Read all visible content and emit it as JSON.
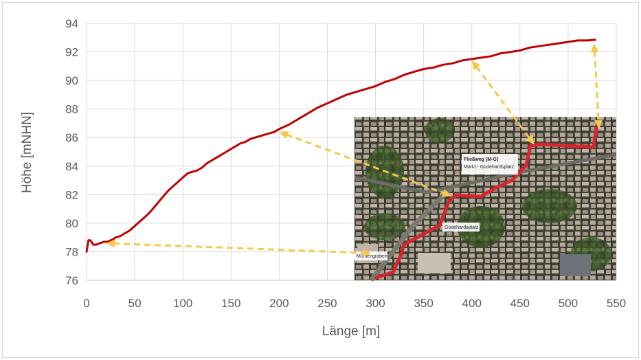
{
  "chart_data": {
    "type": "line",
    "title": "",
    "xlabel": "Länge [m]",
    "ylabel": "Höhe [mNHN]",
    "xlim": [
      0,
      550
    ],
    "ylim": [
      76,
      94
    ],
    "xticks": [
      0,
      50,
      100,
      150,
      200,
      250,
      300,
      350,
      400,
      450,
      500,
      550
    ],
    "yticks": [
      76,
      78,
      80,
      82,
      84,
      86,
      88,
      90,
      92,
      94
    ],
    "grid": true,
    "legend": "none",
    "series": [
      {
        "color": "#c00000",
        "x": [
          0,
          2,
          4,
          7,
          10,
          14,
          18,
          22,
          25,
          28,
          30,
          35,
          40,
          45,
          50,
          55,
          60,
          65,
          70,
          75,
          80,
          85,
          90,
          95,
          100,
          105,
          110,
          115,
          120,
          125,
          130,
          135,
          140,
          145,
          150,
          155,
          160,
          165,
          170,
          175,
          180,
          185,
          190,
          195,
          200,
          210,
          220,
          230,
          240,
          250,
          260,
          270,
          280,
          290,
          300,
          310,
          320,
          330,
          340,
          350,
          360,
          370,
          380,
          390,
          400,
          410,
          420,
          430,
          440,
          450,
          460,
          470,
          480,
          490,
          500,
          510,
          520,
          528
        ],
        "y": [
          78.0,
          78.8,
          78.8,
          78.5,
          78.5,
          78.6,
          78.7,
          78.7,
          78.8,
          78.9,
          79.0,
          79.1,
          79.3,
          79.5,
          79.8,
          80.1,
          80.4,
          80.7,
          81.1,
          81.5,
          81.9,
          82.3,
          82.6,
          82.9,
          83.2,
          83.5,
          83.6,
          83.7,
          83.9,
          84.2,
          84.4,
          84.6,
          84.8,
          85.0,
          85.2,
          85.4,
          85.6,
          85.7,
          85.9,
          86.0,
          86.1,
          86.2,
          86.3,
          86.4,
          86.6,
          86.9,
          87.3,
          87.7,
          88.1,
          88.4,
          88.7,
          89.0,
          89.2,
          89.4,
          89.6,
          89.9,
          90.1,
          90.4,
          90.6,
          90.8,
          90.9,
          91.1,
          91.2,
          91.4,
          91.5,
          91.6,
          91.7,
          91.9,
          92.0,
          92.1,
          92.3,
          92.4,
          92.5,
          92.6,
          92.7,
          92.8,
          92.8,
          92.85
        ]
      }
    ],
    "annotations": [
      {
        "type": "arrow",
        "from": [
          20,
          78.6
        ],
        "to": [
          296,
          77.9
        ]
      },
      {
        "type": "arrow",
        "from": [
          200,
          86.4
        ],
        "to": [
          379,
          81.9
        ]
      },
      {
        "type": "arrow",
        "from": [
          400,
          91.4
        ],
        "to": [
          465,
          85.5
        ]
      },
      {
        "type": "arrow",
        "from": [
          527,
          92.6
        ],
        "to": [
          532,
          86.6
        ]
      }
    ],
    "arrow_color": "#f6c84c",
    "inset_map": {
      "labels": [
        "Fließweg [M-G]",
        "Markt - Godehardsplatz",
        "Godehardsplatz",
        "Mühlengraben"
      ]
    }
  }
}
